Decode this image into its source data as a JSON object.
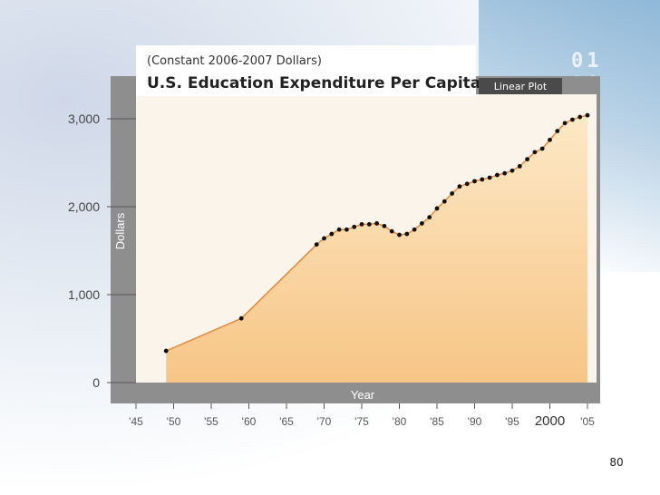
{
  "title": "U.S. Education Expenditure Per Capita",
  "subtitle": "(Constant 2006-2007 Dollars)",
  "plot_tag": "Linear Plot",
  "slide_number": "80",
  "colors": {
    "frame": "#8e8e8e",
    "area_fill": "#fbe3bd",
    "line": "#e8893a",
    "marker": "#111111"
  },
  "chart_data": {
    "type": "area",
    "title": "U.S. Education Expenditure Per Capita",
    "subtitle": "(Constant 2006-2007 Dollars)",
    "xlabel": "Year",
    "ylabel": "Dollars",
    "x_tick_labels": [
      "'45",
      "'50",
      "'55",
      "'60",
      "'65",
      "'70",
      "'75",
      "'80",
      "'85",
      "'90",
      "'95",
      "2000",
      "'05"
    ],
    "y_tick_labels": [
      "0",
      "1,000",
      "2,000",
      "3,000"
    ],
    "xlim": [
      1945,
      2005
    ],
    "ylim": [
      0,
      3000
    ],
    "grid": false,
    "series": [
      {
        "x": [
          1949,
          1959,
          1969,
          1970,
          1971,
          1972,
          1973,
          1974,
          1975,
          1976,
          1977,
          1978,
          1979,
          1980,
          1981,
          1982,
          1983,
          1984,
          1985,
          1986,
          1987,
          1988,
          1989,
          1990,
          1991,
          1992,
          1993,
          1994,
          1995,
          1996,
          1997,
          1998,
          1999,
          2000,
          2001,
          2002,
          2003,
          2004,
          2005
        ],
        "y": [
          360,
          730,
          1570,
          1640,
          1690,
          1740,
          1740,
          1770,
          1800,
          1800,
          1810,
          1780,
          1720,
          1680,
          1690,
          1740,
          1810,
          1880,
          1980,
          2060,
          2150,
          2230,
          2260,
          2290,
          2310,
          2330,
          2360,
          2380,
          2410,
          2460,
          2540,
          2620,
          2660,
          2760,
          2860,
          2950,
          2990,
          3020,
          3040
        ]
      }
    ]
  }
}
